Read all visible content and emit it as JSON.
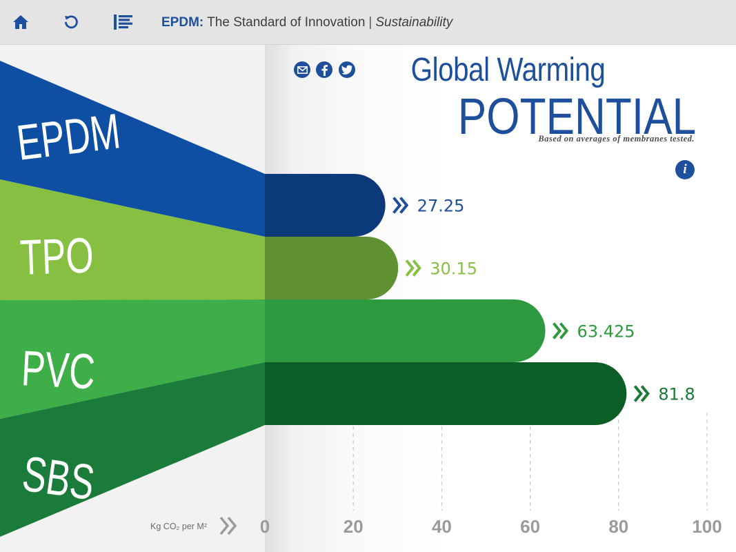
{
  "toolbar": {
    "home_icon": "home-icon",
    "refresh_icon": "refresh-icon",
    "menu_icon": "list-menu-icon",
    "brand": "EPDM:",
    "title": "The Standard of Innovation",
    "separator": "|",
    "section": "Sustainability",
    "color": "#1e4f9c"
  },
  "header": {
    "title_line1": "Global Warming",
    "title_line2": "POTENTIAL",
    "subtitle": "Based on averages of membranes tested.",
    "share_icons": [
      "email-icon",
      "facebook-icon",
      "twitter-icon"
    ],
    "info_label": "i"
  },
  "chart_data": {
    "type": "bar",
    "orientation": "horizontal",
    "categories": [
      "EPDM",
      "TPO",
      "PVC",
      "SBS"
    ],
    "values": [
      27.25,
      30.15,
      63.425,
      81.8
    ],
    "value_labels": [
      "27.25",
      "30.15",
      "63.425",
      "81.8"
    ],
    "xlabel": "Kg CO₂ per M²",
    "xlim": [
      0,
      100
    ],
    "xticks": [
      0,
      20,
      40,
      60,
      80,
      100
    ],
    "grid": "vertical dashed",
    "legend": "none",
    "colors": {
      "band": [
        "#0f4fa3",
        "#86bf42",
        "#3eae48",
        "#1a7b3a"
      ],
      "bar": [
        "#0b3979",
        "#5f9032",
        "#2d9a40",
        "#0b5e25"
      ],
      "value": [
        "#1e4f9c",
        "#86bf42",
        "#2d9a40",
        "#1d7a36"
      ]
    }
  }
}
